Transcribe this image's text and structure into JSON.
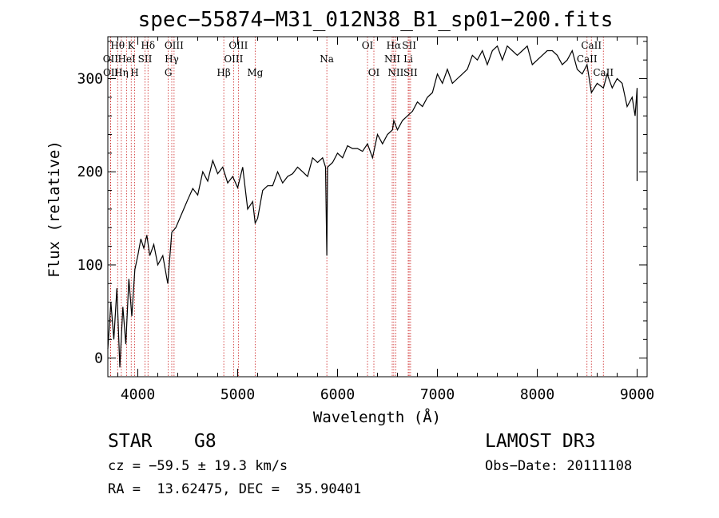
{
  "chart_data": {
    "type": "line",
    "title": "spec−55874−M31_012N38_B1_sp01−200.fits",
    "xlabel": "Wavelength (Å)",
    "ylabel": "Flux (relative)",
    "xlim": [
      3700,
      9100
    ],
    "ylim": [
      -20,
      345
    ],
    "xticks": [
      4000,
      5000,
      6000,
      7000,
      8000,
      9000
    ],
    "yticks": [
      0,
      100,
      200,
      300
    ],
    "series": [
      {
        "name": "spectrum",
        "x": [
          3700,
          3730,
          3760,
          3790,
          3820,
          3850,
          3880,
          3910,
          3940,
          3970,
          4000,
          4030,
          4060,
          4090,
          4120,
          4160,
          4200,
          4250,
          4300,
          4340,
          4380,
          4420,
          4460,
          4500,
          4550,
          4600,
          4650,
          4700,
          4750,
          4800,
          4850,
          4900,
          4950,
          5000,
          5050,
          5100,
          5150,
          5175,
          5200,
          5250,
          5300,
          5350,
          5400,
          5450,
          5500,
          5550,
          5600,
          5650,
          5700,
          5750,
          5800,
          5850,
          5880,
          5893,
          5900,
          5950,
          6000,
          6050,
          6100,
          6150,
          6200,
          6250,
          6300,
          6350,
          6400,
          6450,
          6500,
          6550,
          6563,
          6600,
          6650,
          6700,
          6750,
          6800,
          6850,
          6900,
          6950,
          7000,
          7050,
          7100,
          7150,
          7200,
          7250,
          7300,
          7350,
          7400,
          7450,
          7500,
          7550,
          7600,
          7650,
          7700,
          7750,
          7800,
          7850,
          7900,
          7950,
          8000,
          8050,
          8100,
          8150,
          8200,
          8250,
          8300,
          8350,
          8400,
          8450,
          8498,
          8542,
          8600,
          8662,
          8700,
          8750,
          8800,
          8850,
          8900,
          8950,
          8980,
          9000,
          9000
        ],
        "values": [
          10,
          60,
          20,
          75,
          -10,
          55,
          15,
          85,
          45,
          95,
          110,
          128,
          118,
          132,
          110,
          122,
          100,
          110,
          80,
          135,
          140,
          150,
          160,
          170,
          182,
          175,
          200,
          190,
          212,
          198,
          205,
          188,
          195,
          183,
          205,
          160,
          168,
          145,
          150,
          180,
          185,
          185,
          200,
          188,
          195,
          198,
          205,
          200,
          195,
          215,
          210,
          215,
          205,
          110,
          205,
          210,
          220,
          215,
          228,
          225,
          225,
          222,
          230,
          215,
          240,
          230,
          240,
          245,
          255,
          245,
          255,
          260,
          265,
          275,
          270,
          280,
          285,
          305,
          295,
          310,
          295,
          300,
          305,
          310,
          325,
          320,
          330,
          315,
          330,
          335,
          320,
          335,
          330,
          325,
          330,
          335,
          315,
          320,
          325,
          330,
          330,
          325,
          315,
          320,
          330,
          310,
          305,
          315,
          285,
          295,
          290,
          305,
          290,
          300,
          295,
          270,
          280,
          260,
          290,
          190
        ]
      }
    ],
    "line_markers": [
      {
        "label": "Hθ",
        "wavelength": 3798,
        "row": 0
      },
      {
        "label": "K",
        "wavelength": 3934,
        "row": 0
      },
      {
        "label": "Hδ",
        "wavelength": 4102,
        "row": 0
      },
      {
        "label": "OIII",
        "wavelength": 4363,
        "row": 0
      },
      {
        "label": "OIII",
        "wavelength": 5007,
        "row": 0
      },
      {
        "label": "OI",
        "wavelength": 6300,
        "row": 0
      },
      {
        "label": "Hα",
        "wavelength": 6563,
        "row": 0
      },
      {
        "label": "SII",
        "wavelength": 6717,
        "row": 0
      },
      {
        "label": "CaII",
        "wavelength": 8542,
        "row": 0
      },
      {
        "label": "OII",
        "wavelength": 3727,
        "row": 1
      },
      {
        "label": "HeI",
        "wavelength": 3889,
        "row": 1
      },
      {
        "label": "SII",
        "wavelength": 4072,
        "row": 1
      },
      {
        "label": "Hγ",
        "wavelength": 4340,
        "row": 1
      },
      {
        "label": "OIII",
        "wavelength": 4959,
        "row": 1
      },
      {
        "label": "Na",
        "wavelength": 5893,
        "row": 1
      },
      {
        "label": "NII",
        "wavelength": 6548,
        "row": 1
      },
      {
        "label": "Li",
        "wavelength": 6708,
        "row": 1
      },
      {
        "label": "CaII",
        "wavelength": 8498,
        "row": 1
      },
      {
        "label": "OII",
        "wavelength": 3729,
        "row": 2
      },
      {
        "label": "Hη",
        "wavelength": 3835,
        "row": 2
      },
      {
        "label": "H",
        "wavelength": 3968,
        "row": 2
      },
      {
        "label": "G",
        "wavelength": 4305,
        "row": 2
      },
      {
        "label": "Hβ",
        "wavelength": 4861,
        "row": 2
      },
      {
        "label": "Mg",
        "wavelength": 5175,
        "row": 2
      },
      {
        "label": "OI",
        "wavelength": 6364,
        "row": 2
      },
      {
        "label": "NII",
        "wavelength": 6583,
        "row": 2
      },
      {
        "label": "SII",
        "wavelength": 6731,
        "row": 2
      },
      {
        "label": "CaII",
        "wavelength": 8662,
        "row": 2
      }
    ],
    "colors": {
      "axis": "#000000",
      "spectrum": "#000000",
      "marker": "#cc2222"
    }
  },
  "info": {
    "class": "STAR",
    "subclass": "G8",
    "survey": "LAMOST DR3",
    "cz": "cz = −59.5 ± 19.3 km/s",
    "obs_date": "Obs−Date: 20111108",
    "radec": "RA =  13.62475, DEC =  35.90401"
  }
}
